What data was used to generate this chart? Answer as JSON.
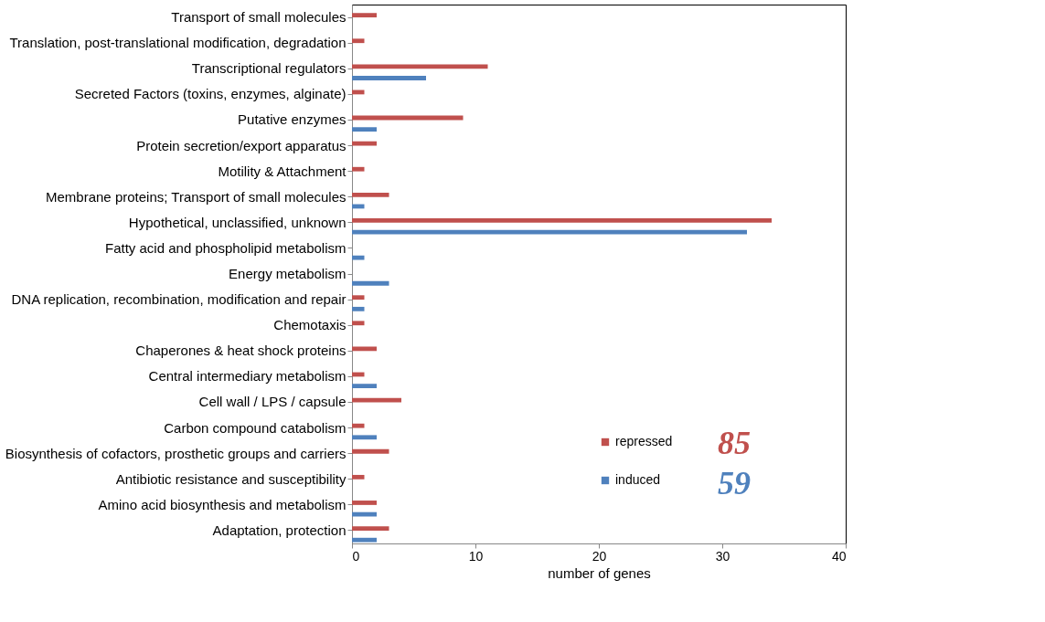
{
  "chart_data": {
    "type": "bar",
    "orientation": "horizontal",
    "xlabel": "number of genes",
    "categories": [
      "Transport of small molecules",
      "Translation, post-translational modification, degradation",
      "Transcriptional regulators",
      "Secreted Factors (toxins, enzymes, alginate)",
      "Putative enzymes",
      "Protein secretion/export apparatus",
      "Motility & Attachment",
      "Membrane proteins; Transport of small molecules",
      "Hypothetical, unclassified, unknown",
      "Fatty acid and phospholipid metabolism",
      "Energy metabolism",
      "DNA replication, recombination, modification and repair",
      "Chemotaxis",
      "Chaperones & heat shock proteins",
      "Central intermediary metabolism",
      "Cell wall / LPS / capsule",
      "Carbon compound catabolism",
      "Biosynthesis of cofactors, prosthetic groups and carriers",
      "Antibiotic resistance and susceptibility",
      "Amino acid biosynthesis and metabolism",
      "Adaptation, protection"
    ],
    "series": [
      {
        "name": "repressed",
        "color": "#c0504d",
        "values": [
          2,
          1,
          11,
          1,
          9,
          2,
          1,
          3,
          34,
          null,
          null,
          1,
          1,
          2,
          1,
          4,
          1,
          3,
          1,
          2,
          3
        ]
      },
      {
        "name": "induced",
        "color": "#4f81bd",
        "values": [
          null,
          null,
          6,
          null,
          2,
          null,
          null,
          1,
          32,
          1,
          3,
          1,
          null,
          null,
          2,
          null,
          2,
          null,
          null,
          2,
          2
        ]
      }
    ],
    "xlim": [
      0,
      40
    ],
    "xticks": [
      0,
      10,
      20,
      30,
      40
    ],
    "grid": false,
    "legend": "bottom right",
    "annotations": [
      "85",
      "59"
    ]
  }
}
